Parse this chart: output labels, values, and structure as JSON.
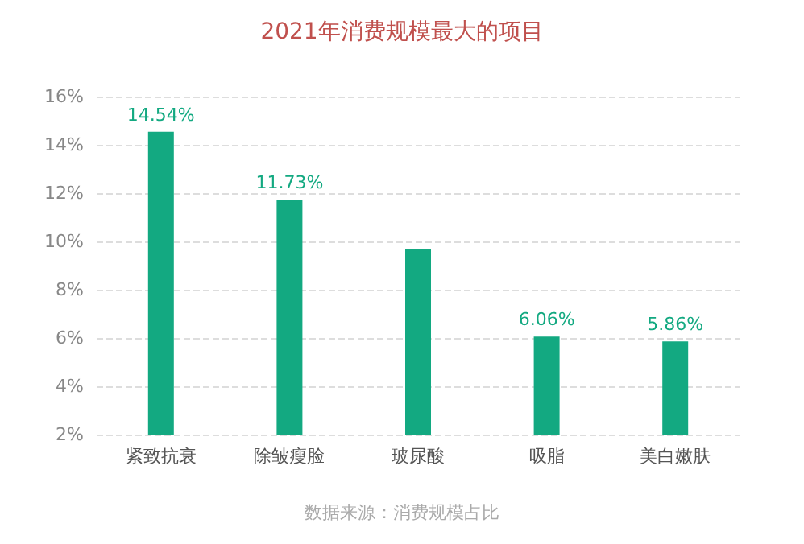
{
  "chart_data": {
    "type": "bar",
    "title": "2021年消费规模最大的项目",
    "categories": [
      "紧致抗衰",
      "除皱瘦脸",
      "玻尿酸",
      "吸脂",
      "美白嫩肤"
    ],
    "values": [
      14.54,
      11.73,
      9.7,
      6.06,
      5.86
    ],
    "value_labels": [
      "14.54%",
      "11.73%",
      null,
      "6.06%",
      "5.86%"
    ],
    "color": "#13a981",
    "ylim": [
      2,
      16
    ],
    "yticks": [
      {
        "value": 2,
        "label": "2%"
      },
      {
        "value": 4,
        "label": "4%"
      },
      {
        "value": 6,
        "label": "6%"
      },
      {
        "value": 8,
        "label": "8%"
      },
      {
        "value": 10,
        "label": "10%"
      },
      {
        "value": 12,
        "label": "12%"
      },
      {
        "value": 14,
        "label": "14%"
      },
      {
        "value": 16,
        "label": "16%"
      }
    ],
    "grid": "y",
    "annotations": [
      "数据来源：消费规模占比"
    ]
  }
}
